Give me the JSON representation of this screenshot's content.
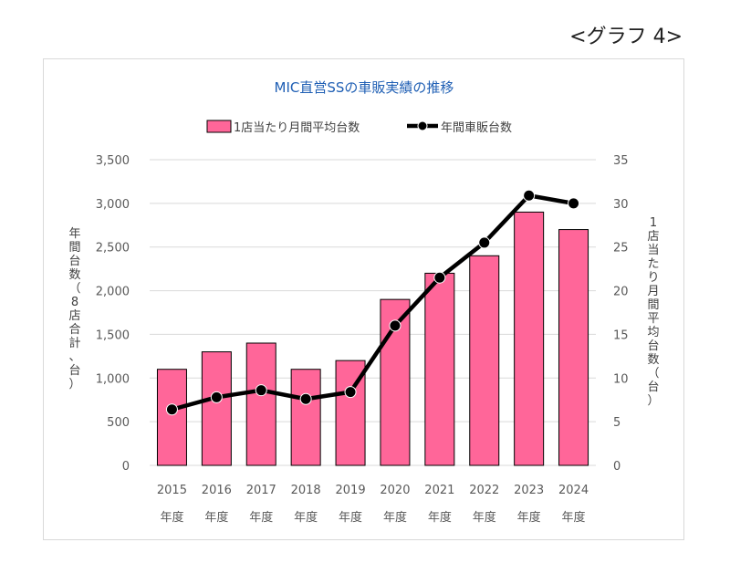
{
  "graph_label": "<グラフ 4>",
  "chart_data": {
    "type": "bar",
    "title": "MIC直営SSの車販実績の推移",
    "categories": [
      "2015",
      "2016",
      "2017",
      "2018",
      "2019",
      "2020",
      "2021",
      "2022",
      "2023",
      "2024"
    ],
    "category_suffix": "年度",
    "series": [
      {
        "name": "1店当たり月間平均台数",
        "type": "bar",
        "axis": "right",
        "color": "#ff6699",
        "values": [
          11,
          13,
          14,
          11,
          12,
          19,
          22,
          24,
          29,
          27
        ]
      },
      {
        "name": "年間車販台数",
        "type": "line",
        "axis": "left",
        "color": "#000000",
        "values": [
          640,
          780,
          860,
          760,
          840,
          1600,
          2150,
          2550,
          3090,
          3000
        ]
      }
    ],
    "y_left": {
      "label": "年間台数（8店合計、台）",
      "ylim": [
        0,
        3500
      ],
      "ticks": [
        "0",
        "500",
        "1,000",
        "1,500",
        "2,000",
        "2,500",
        "3,000",
        "3,500"
      ]
    },
    "y_right": {
      "label": "1店当たり月間平均台数（台）",
      "ylim": [
        0,
        35
      ],
      "ticks": [
        "0",
        "5",
        "10",
        "15",
        "20",
        "25",
        "30",
        "35"
      ]
    },
    "grid": true,
    "legend": "top"
  }
}
